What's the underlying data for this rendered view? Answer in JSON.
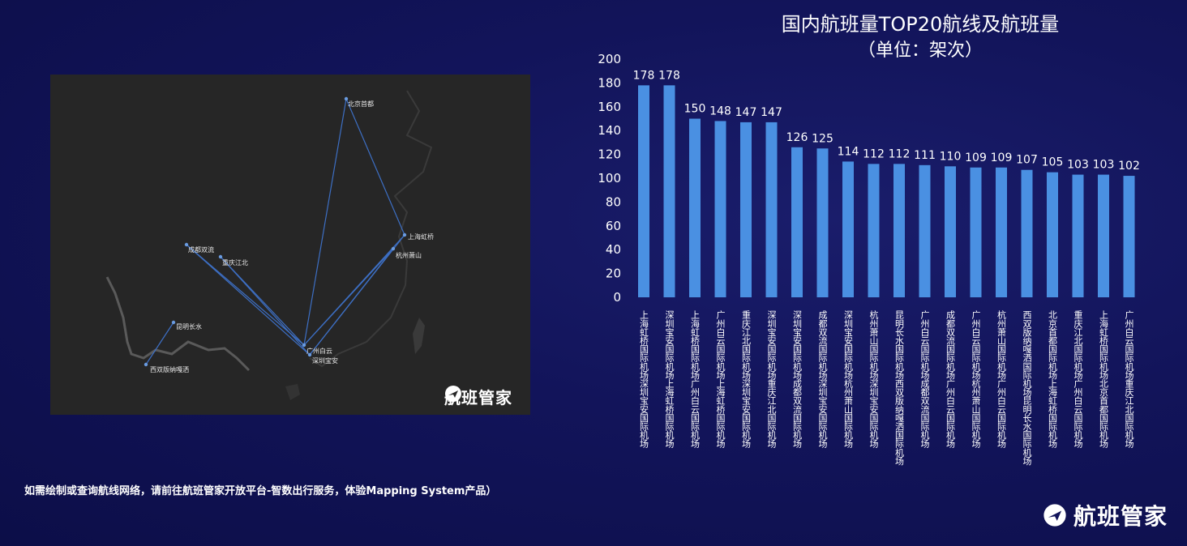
{
  "map": {
    "cities": [
      {
        "id": "beijing",
        "label": "北京首都"
      },
      {
        "id": "shanghai",
        "label": "上海虹桥"
      },
      {
        "id": "hangzhou",
        "label": "杭州萧山"
      },
      {
        "id": "chengdu",
        "label": "成都双流"
      },
      {
        "id": "chongqing",
        "label": "重庆江北"
      },
      {
        "id": "kunming",
        "label": "昆明长水"
      },
      {
        "id": "xishuangbanna",
        "label": "西双版纳嘎洒"
      },
      {
        "id": "guangzhou",
        "label": "广州白云"
      },
      {
        "id": "shenzhen",
        "label": "深圳宝安"
      }
    ],
    "routes": [
      [
        "shanghai",
        "shenzhen"
      ],
      [
        "shanghai",
        "guangzhou"
      ],
      [
        "chongqing",
        "shenzhen"
      ],
      [
        "chengdu",
        "shenzhen"
      ],
      [
        "hangzhou",
        "shenzhen"
      ],
      [
        "kunming",
        "xishuangbanna"
      ],
      [
        "chengdu",
        "guangzhou"
      ],
      [
        "hangzhou",
        "guangzhou"
      ],
      [
        "beijing",
        "shanghai"
      ],
      [
        "chongqing",
        "guangzhou"
      ],
      [
        "beijing",
        "guangzhou"
      ]
    ],
    "route_color": "#3d6fc4",
    "logo_text": "航班管家"
  },
  "title": "国内航班量TOP20航线及航班量",
  "subtitle": "（单位：架次）",
  "footnote": "如需绘制或查询航线网络，请前往航班管家开放平台-智数出行服务，体验Mapping System产品）",
  "brand": {
    "logo_text": "航班管家"
  },
  "chart_data": {
    "type": "bar",
    "categories": [
      "上海虹桥国际机场-深圳宝安国际机场",
      "深圳宝安国际机场-上海虹桥国际机场",
      "上海虹桥国际机场-广州白云国际机场",
      "广州白云国际机场-上海虹桥国际机场",
      "重庆江北国际机场-深圳宝安国际机场",
      "深圳宝安国际机场-重庆江北国际机场",
      "深圳宝安国际机场-成都双流国际机场",
      "成都双流国际机场-深圳宝安国际机场",
      "深圳宝安国际机场-杭州萧山国际机场",
      "杭州萧山国际机场-深圳宝安国际机场",
      "昆明长水国际机场-西双版纳嘎洒国际机场",
      "广州白云国际机场-成都双流国际机场",
      "成都双流国际机场-广州白云国际机场",
      "广州白云国际机场-杭州萧山国际机场",
      "杭州萧山国际机场-广州白云国际机场",
      "西双版纳嘎洒国际机场-昆明长水国际机场",
      "北京首都国际机场-上海虹桥国际机场",
      "重庆江北国际机场-广州白云国际机场",
      "上海虹桥国际机场-北京首都国际机场",
      "广州白云国际机场-重庆江北国际机场"
    ],
    "values": [
      178,
      178,
      150,
      148,
      147,
      147,
      126,
      125,
      114,
      112,
      112,
      111,
      110,
      109,
      109,
      107,
      105,
      103,
      103,
      102
    ],
    "ylim": [
      0,
      200
    ],
    "yticks": [
      0,
      20,
      40,
      60,
      80,
      100,
      120,
      140,
      160,
      180,
      200
    ],
    "grid": false,
    "bar_color": "#4a90e2"
  }
}
